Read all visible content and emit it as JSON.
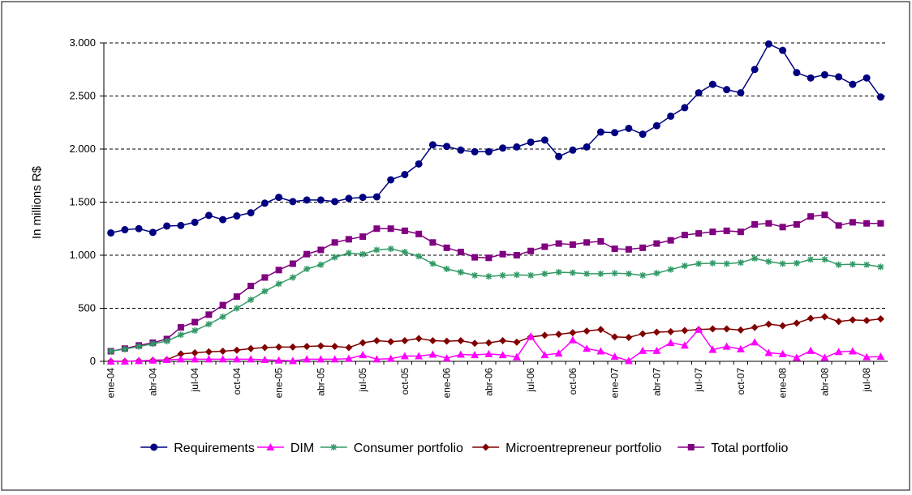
{
  "chart_data": {
    "type": "line",
    "y_label": "In millions R$",
    "categories": [
      "ene-04",
      null,
      null,
      "abr-04",
      null,
      null,
      "jul-04",
      null,
      null,
      "oct-04",
      null,
      null,
      "ene-05",
      null,
      null,
      "abr-05",
      null,
      null,
      "jul-05",
      null,
      null,
      "oct-05",
      null,
      null,
      "ene-06",
      null,
      null,
      "abr-06",
      null,
      null,
      "jul-06",
      null,
      null,
      "oct-06",
      null,
      null,
      "ene-07",
      null,
      null,
      "abr-07",
      null,
      null,
      "jul-07",
      null,
      null,
      "oct-07",
      null,
      null,
      "ene-08",
      null,
      null,
      "abr-08",
      null,
      null,
      "jul-08",
      null
    ],
    "ylim": [
      0,
      3000
    ],
    "yticks": [
      0,
      500,
      {
        "value": 1000,
        "label": "1.000"
      },
      {
        "value": 1500,
        "label": "1.500"
      },
      {
        "value": 2000,
        "label": "2.000"
      },
      {
        "value": 2500,
        "label": "2.500"
      },
      {
        "value": 3000,
        "label": "3.000"
      }
    ],
    "grid": true,
    "legend": "bottom",
    "series": [
      {
        "name": "Requirements",
        "color": "#000080",
        "marker": "circle",
        "values": [
          1210,
          1240,
          1250,
          1215,
          1275,
          1280,
          1310,
          1375,
          1335,
          1370,
          1400,
          1490,
          1545,
          1505,
          1520,
          1520,
          1505,
          1535,
          1545,
          1550,
          1710,
          1760,
          1860,
          2040,
          2025,
          1990,
          1975,
          1975,
          2010,
          2020,
          2065,
          2085,
          1930,
          1990,
          2020,
          2160,
          2155,
          2195,
          2140,
          2220,
          2310,
          2390,
          2530,
          2610,
          2560,
          2530,
          2750,
          2990,
          2930,
          2720,
          2670,
          2700,
          2680,
          2610,
          2670,
          2490
        ]
      },
      {
        "name": "DIM",
        "color": "#FF00FF",
        "marker": "triangle",
        "values": [
          0,
          0,
          5,
          10,
          15,
          20,
          20,
          20,
          20,
          20,
          20,
          15,
          10,
          5,
          20,
          20,
          20,
          25,
          60,
          20,
          25,
          50,
          50,
          65,
          30,
          65,
          60,
          70,
          60,
          40,
          235,
          60,
          75,
          200,
          120,
          95,
          45,
          5,
          100,
          100,
          175,
          150,
          300,
          110,
          140,
          115,
          180,
          80,
          70,
          35,
          100,
          35,
          90,
          95,
          40,
          45
        ]
      },
      {
        "name": "Consumer portfolio",
        "color": "#339966",
        "marker": "star",
        "values": [
          95,
          115,
          140,
          165,
          190,
          250,
          290,
          350,
          420,
          500,
          580,
          660,
          730,
          790,
          870,
          910,
          980,
          1020,
          1010,
          1050,
          1060,
          1030,
          990,
          920,
          870,
          840,
          810,
          800,
          810,
          815,
          810,
          825,
          840,
          835,
          825,
          825,
          830,
          825,
          810,
          830,
          865,
          900,
          920,
          925,
          920,
          930,
          970,
          940,
          920,
          925,
          960,
          960,
          910,
          915,
          910,
          890
        ]
      },
      {
        "name": "Microentrepreneur portfolio",
        "color": "#800000",
        "marker": "diamond",
        "values": [
          0,
          0,
          5,
          10,
          15,
          70,
          80,
          90,
          95,
          105,
          120,
          130,
          135,
          135,
          140,
          145,
          140,
          130,
          175,
          195,
          185,
          195,
          215,
          195,
          190,
          195,
          170,
          175,
          195,
          180,
          230,
          245,
          255,
          270,
          285,
          300,
          230,
          225,
          260,
          275,
          280,
          290,
          300,
          305,
          305,
          295,
          320,
          350,
          335,
          360,
          405,
          420,
          375,
          390,
          385,
          400
        ]
      },
      {
        "name": "Total portfolio",
        "color": "#800080",
        "marker": "square",
        "values": [
          95,
          120,
          150,
          175,
          210,
          320,
          370,
          440,
          530,
          610,
          710,
          790,
          860,
          920,
          1010,
          1050,
          1120,
          1150,
          1175,
          1250,
          1250,
          1230,
          1200,
          1120,
          1070,
          1030,
          980,
          975,
          1010,
          1000,
          1040,
          1080,
          1110,
          1100,
          1120,
          1130,
          1060,
          1055,
          1070,
          1110,
          1140,
          1190,
          1205,
          1220,
          1230,
          1220,
          1290,
          1300,
          1265,
          1290,
          1365,
          1380,
          1280,
          1310,
          1300,
          1300
        ]
      }
    ]
  }
}
